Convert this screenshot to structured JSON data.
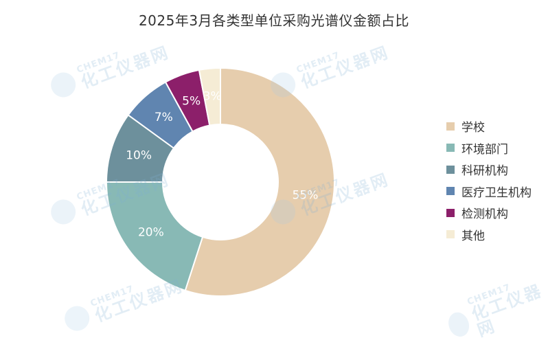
{
  "chart_data": {
    "type": "pie",
    "variant": "donut",
    "title": "2025年3月各类型单位采购光谱仪金额占比",
    "categories": [
      "学校",
      "环境部门",
      "科研机构",
      "医疗卫生机构",
      "检测机构",
      "其他"
    ],
    "values": [
      55,
      20,
      10,
      7,
      5,
      3
    ],
    "labels": [
      "55%",
      "20%",
      "10%",
      "7%",
      "5%",
      "3%"
    ],
    "colors": [
      "#e6cdad",
      "#88b9b5",
      "#6d909c",
      "#6085b0",
      "#8c1f6a",
      "#f5ecd5"
    ],
    "legend_position": "right"
  },
  "watermark": {
    "line1": "CHEM17",
    "line2": "化工仪器网"
  }
}
